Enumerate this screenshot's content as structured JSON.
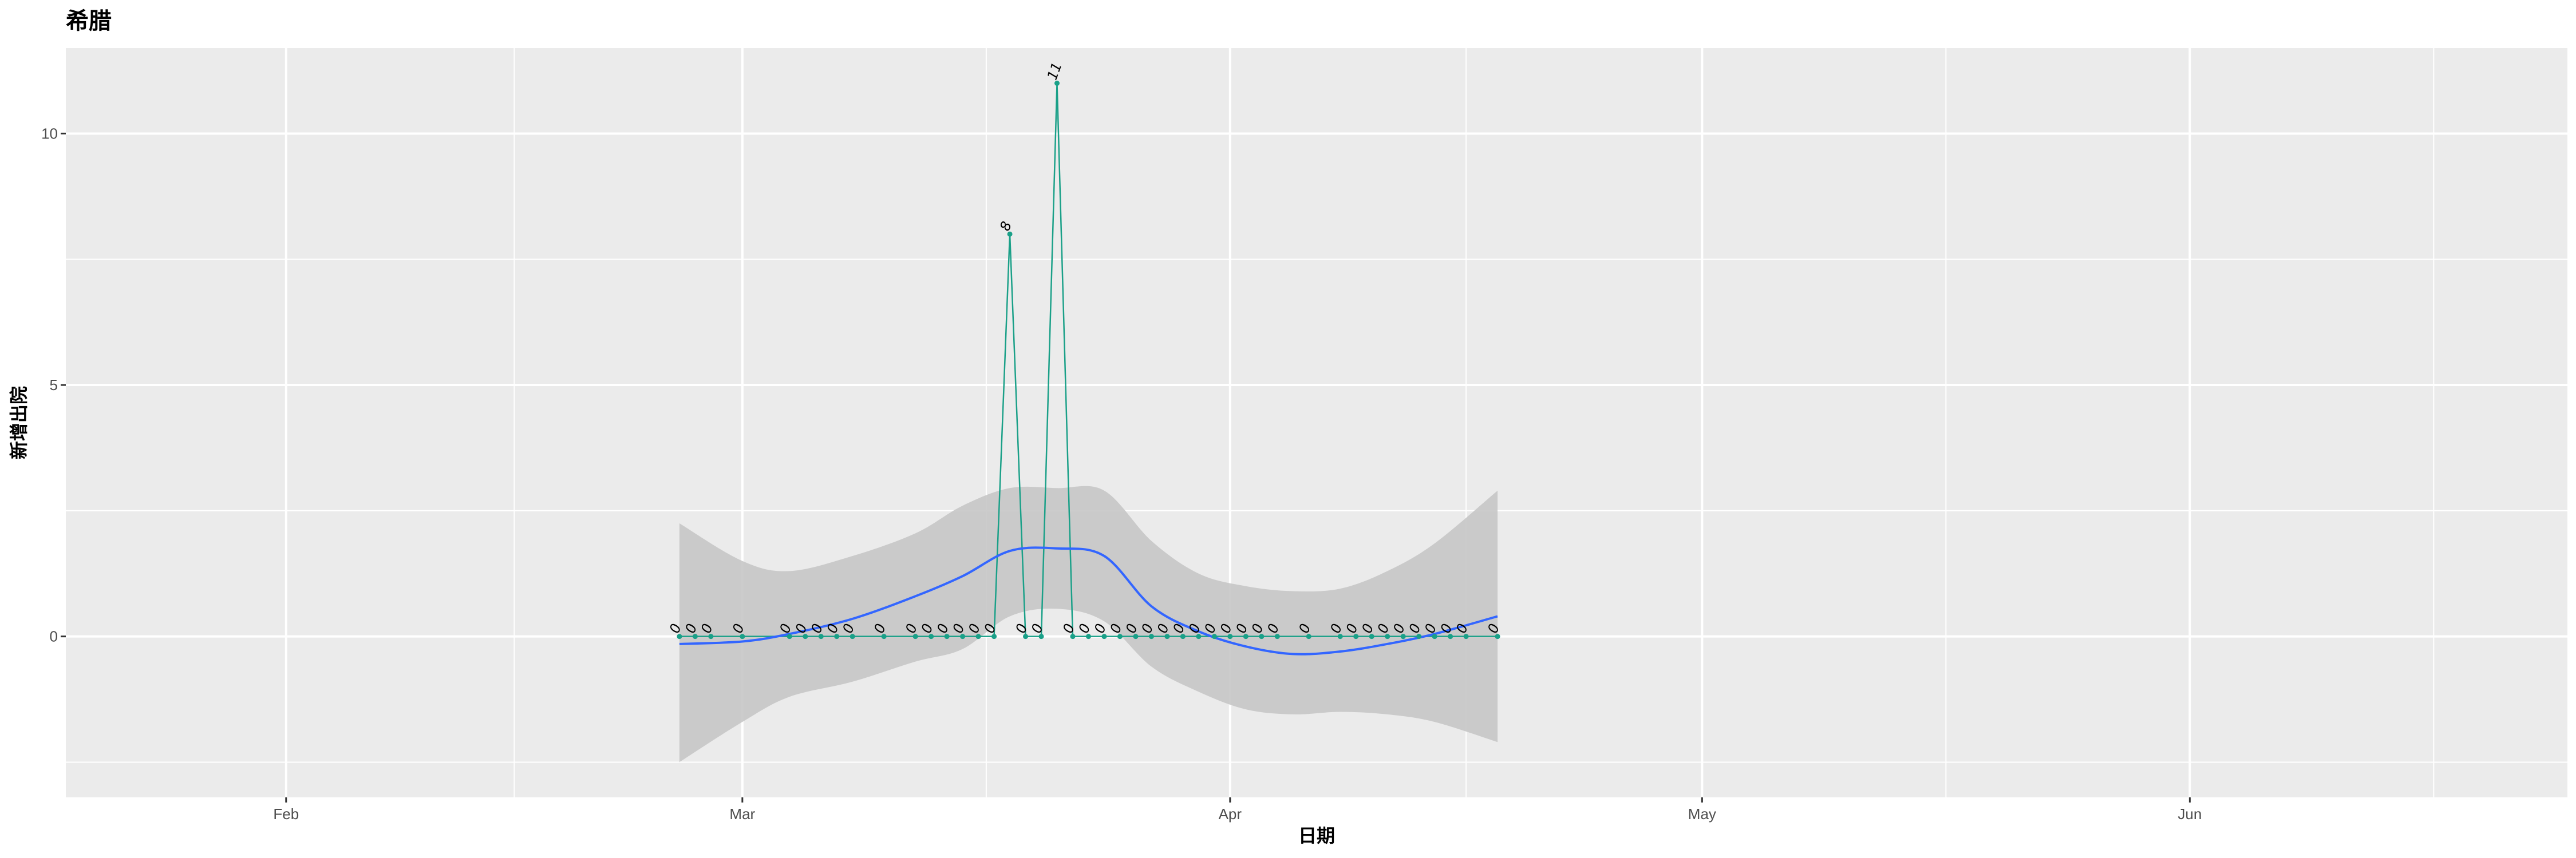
{
  "chart_data": {
    "type": "line",
    "title": "希腊",
    "xlabel": "日期",
    "ylabel": "新增出院",
    "x_ticks": [
      {
        "date": "2020-02-01",
        "label": "Feb"
      },
      {
        "date": "2020-03-01",
        "label": "Mar"
      },
      {
        "date": "2020-04-01",
        "label": "Apr"
      },
      {
        "date": "2020-05-01",
        "label": "May"
      },
      {
        "date": "2020-06-01",
        "label": "Jun"
      }
    ],
    "y_ticks": [
      0,
      5,
      10
    ],
    "xlim": [
      "2020-01-18",
      "2020-06-25"
    ],
    "ylim": [
      -3.2,
      11.7
    ],
    "grid": true,
    "colors": {
      "panel": "#ebebeb",
      "grid": "#ffffff",
      "line": "#1aa088",
      "smooth": "#3366ff",
      "ribbon": "#c6c6c6"
    },
    "series": [
      {
        "x": [
          "2020-02-26",
          "2020-02-27",
          "2020-02-28",
          "2020-03-01",
          "2020-03-04",
          "2020-03-05",
          "2020-03-06",
          "2020-03-07",
          "2020-03-08",
          "2020-03-10",
          "2020-03-12",
          "2020-03-13",
          "2020-03-14",
          "2020-03-15",
          "2020-03-16",
          "2020-03-17",
          "2020-03-18",
          "2020-03-19",
          "2020-03-20",
          "2020-03-21",
          "2020-03-22",
          "2020-03-23",
          "2020-03-24",
          "2020-03-25",
          "2020-03-26",
          "2020-03-27",
          "2020-03-28",
          "2020-03-29",
          "2020-03-30",
          "2020-03-31",
          "2020-04-01",
          "2020-04-02",
          "2020-04-03",
          "2020-04-04",
          "2020-04-06",
          "2020-04-08",
          "2020-04-09",
          "2020-04-10",
          "2020-04-11",
          "2020-04-12",
          "2020-04-13",
          "2020-04-14",
          "2020-04-15",
          "2020-04-16",
          "2020-04-18"
        ],
        "y": [
          0,
          0,
          0,
          0,
          0,
          0,
          0,
          0,
          0,
          0,
          0,
          0,
          0,
          0,
          0,
          0,
          8,
          0,
          0,
          11,
          0,
          0,
          0,
          0,
          0,
          0,
          0,
          0,
          0,
          0,
          0,
          0,
          0,
          0,
          0,
          0,
          0,
          0,
          0,
          0,
          0,
          0,
          0,
          0,
          0
        ]
      }
    ],
    "smooth": {
      "x": [
        "2020-02-26",
        "2020-03-01",
        "2020-03-04",
        "2020-03-08",
        "2020-03-12",
        "2020-03-15",
        "2020-03-18",
        "2020-03-21",
        "2020-03-24",
        "2020-03-27",
        "2020-03-30",
        "2020-04-02",
        "2020-04-05",
        "2020-04-08",
        "2020-04-11",
        "2020-04-14",
        "2020-04-18"
      ],
      "y": [
        -0.15,
        -0.1,
        0.05,
        0.35,
        0.8,
        1.2,
        1.7,
        1.75,
        1.6,
        0.6,
        0.1,
        -0.2,
        -0.35,
        -0.3,
        -0.15,
        0.05,
        0.4
      ],
      "lower": [
        -2.5,
        -1.7,
        -1.2,
        -0.9,
        -0.5,
        -0.25,
        0.4,
        0.55,
        0.3,
        -0.6,
        -1.1,
        -1.45,
        -1.55,
        -1.5,
        -1.55,
        -1.7,
        -2.1
      ],
      "upper": [
        2.25,
        1.5,
        1.3,
        1.6,
        2.05,
        2.6,
        2.95,
        2.95,
        2.9,
        1.9,
        1.25,
        1.0,
        0.9,
        0.95,
        1.3,
        1.85,
        2.9
      ]
    }
  }
}
